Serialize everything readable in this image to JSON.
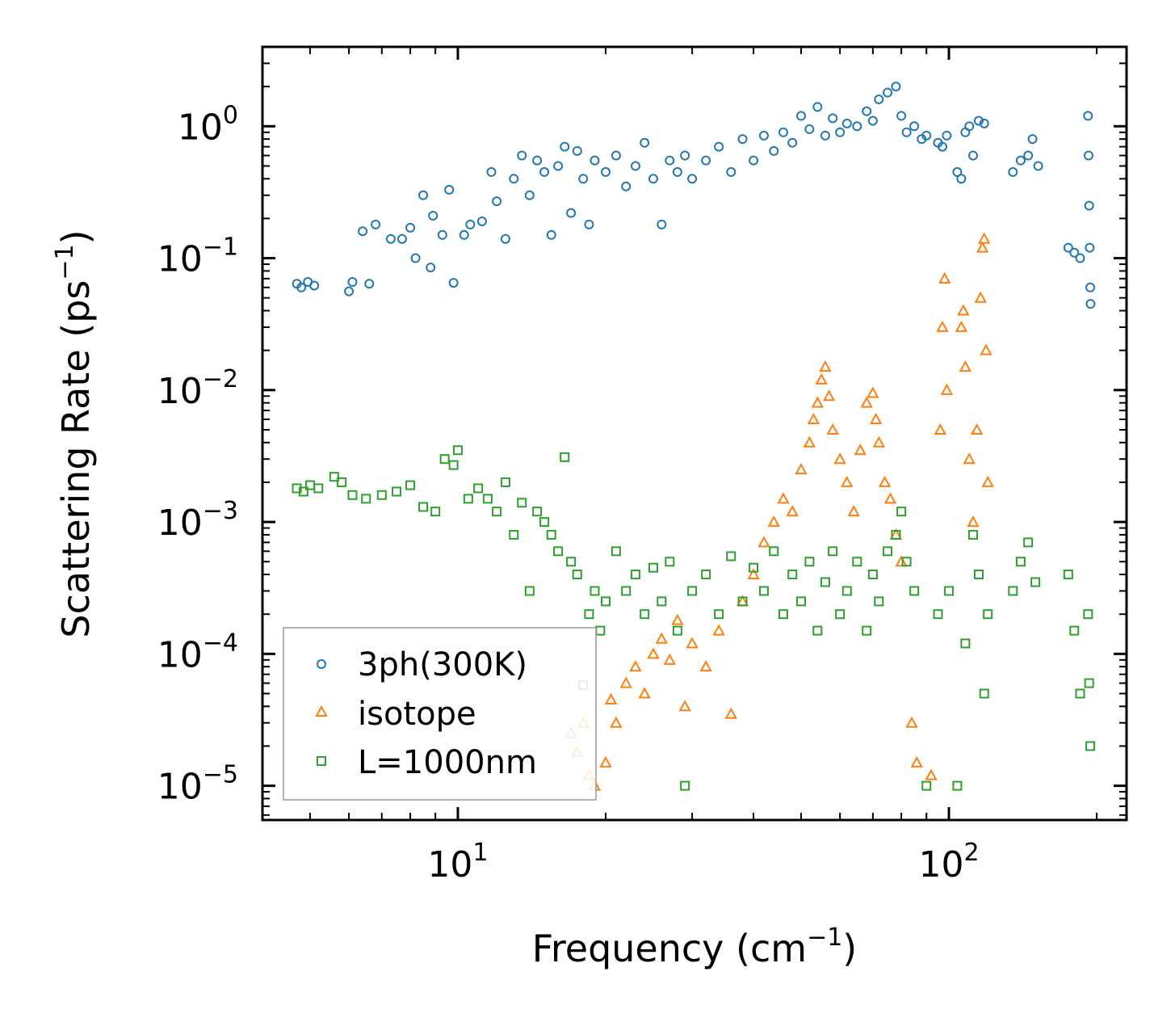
{
  "chart_data": {
    "type": "scatter",
    "title": "",
    "xlabel": "Frequency (cm",
    "xlabel_sup": "−1",
    "xlabel_tail": ")",
    "ylabel": "Scattering Rate (ps",
    "ylabel_sup": "−1",
    "ylabel_tail": ")",
    "xscale": "log",
    "yscale": "log",
    "xlim": [
      4.0,
      230.0
    ],
    "ylim": [
      5.5e-06,
      4.0
    ],
    "grid": false,
    "legend_position": "lower-left",
    "x_ticks": [
      {
        "value": 10,
        "base": "10",
        "exp": "1"
      },
      {
        "value": 100,
        "base": "10",
        "exp": "2"
      }
    ],
    "y_ticks": [
      {
        "value": 1,
        "base": "10",
        "exp": "0"
      },
      {
        "value": 0.1,
        "base": "10",
        "exp": "−1"
      },
      {
        "value": 0.01,
        "base": "10",
        "exp": "−2"
      },
      {
        "value": 0.001,
        "base": "10",
        "exp": "−3"
      },
      {
        "value": 0.0001,
        "base": "10",
        "exp": "−4"
      },
      {
        "value": 1e-05,
        "base": "10",
        "exp": "−5"
      }
    ],
    "series": [
      {
        "name": "3ph(300K)",
        "marker": "circle",
        "color": "#1f77b4",
        "points": [
          [
            4.7,
            0.064
          ],
          [
            4.8,
            0.06
          ],
          [
            4.95,
            0.066
          ],
          [
            5.1,
            0.062
          ],
          [
            6.0,
            0.056
          ],
          [
            6.1,
            0.066
          ],
          [
            6.6,
            0.064
          ],
          [
            6.4,
            0.16
          ],
          [
            6.8,
            0.18
          ],
          [
            7.3,
            0.14
          ],
          [
            7.7,
            0.14
          ],
          [
            8.0,
            0.17
          ],
          [
            8.2,
            0.1
          ],
          [
            8.5,
            0.3
          ],
          [
            8.8,
            0.085
          ],
          [
            8.9,
            0.21
          ],
          [
            9.3,
            0.15
          ],
          [
            9.6,
            0.33
          ],
          [
            9.8,
            0.065
          ],
          [
            10.3,
            0.15
          ],
          [
            10.6,
            0.18
          ],
          [
            11.2,
            0.19
          ],
          [
            11.7,
            0.45
          ],
          [
            12.0,
            0.27
          ],
          [
            12.5,
            0.14
          ],
          [
            13.0,
            0.4
          ],
          [
            13.5,
            0.6
          ],
          [
            14.0,
            0.3
          ],
          [
            14.5,
            0.55
          ],
          [
            15.0,
            0.45
          ],
          [
            15.5,
            0.15
          ],
          [
            16.0,
            0.5
          ],
          [
            16.5,
            0.7
          ],
          [
            17.0,
            0.22
          ],
          [
            17.5,
            0.65
          ],
          [
            18.0,
            0.4
          ],
          [
            18.5,
            0.18
          ],
          [
            19.0,
            0.55
          ],
          [
            20.0,
            0.45
          ],
          [
            21.0,
            0.6
          ],
          [
            22.0,
            0.35
          ],
          [
            23.0,
            0.5
          ],
          [
            24.0,
            0.75
          ],
          [
            25.0,
            0.4
          ],
          [
            26.0,
            0.18
          ],
          [
            27.0,
            0.55
          ],
          [
            28.0,
            0.45
          ],
          [
            29.0,
            0.6
          ],
          [
            30.0,
            0.4
          ],
          [
            32.0,
            0.55
          ],
          [
            34.0,
            0.7
          ],
          [
            36.0,
            0.45
          ],
          [
            38.0,
            0.8
          ],
          [
            40.0,
            0.55
          ],
          [
            42.0,
            0.85
          ],
          [
            44.0,
            0.65
          ],
          [
            46.0,
            0.9
          ],
          [
            48.0,
            0.75
          ],
          [
            50.0,
            1.2
          ],
          [
            52.0,
            0.95
          ],
          [
            54.0,
            1.4
          ],
          [
            56.0,
            0.85
          ],
          [
            58.0,
            1.15
          ],
          [
            60.0,
            0.9
          ],
          [
            62.0,
            1.05
          ],
          [
            65.0,
            1.0
          ],
          [
            68.0,
            1.3
          ],
          [
            70.0,
            1.1
          ],
          [
            72.0,
            1.6
          ],
          [
            75.0,
            1.8
          ],
          [
            78.0,
            2.0
          ],
          [
            80.0,
            1.2
          ],
          [
            82.0,
            0.9
          ],
          [
            85.0,
            1.0
          ],
          [
            88.0,
            0.8
          ],
          [
            90.0,
            0.85
          ],
          [
            95.0,
            0.75
          ],
          [
            97.0,
            0.7
          ],
          [
            99.0,
            0.85
          ],
          [
            104.0,
            0.45
          ],
          [
            106.0,
            0.4
          ],
          [
            108.0,
            0.9
          ],
          [
            110.0,
            1.0
          ],
          [
            112.0,
            0.6
          ],
          [
            115.0,
            1.1
          ],
          [
            118.0,
            1.05
          ],
          [
            135.0,
            0.45
          ],
          [
            140.0,
            0.55
          ],
          [
            145.0,
            0.6
          ],
          [
            148.0,
            0.8
          ],
          [
            152.0,
            0.5
          ],
          [
            175.0,
            0.12
          ],
          [
            180.0,
            0.11
          ],
          [
            185.0,
            0.1
          ],
          [
            192.0,
            1.2
          ],
          [
            192.5,
            0.6
          ],
          [
            193.0,
            0.25
          ],
          [
            193.5,
            0.12
          ],
          [
            194.0,
            0.06
          ],
          [
            194.3,
            0.045
          ]
        ]
      },
      {
        "name": "isotope",
        "marker": "triangle",
        "color": "#ff7f0e",
        "points": [
          [
            17.0,
            2.5e-05
          ],
          [
            17.5,
            1.8e-05
          ],
          [
            18.0,
            3e-05
          ],
          [
            18.5,
            1.2e-05
          ],
          [
            19.0,
            1e-05
          ],
          [
            20.0,
            1.5e-05
          ],
          [
            20.5,
            4.5e-05
          ],
          [
            21.0,
            3e-05
          ],
          [
            22.0,
            6e-05
          ],
          [
            23.0,
            8e-05
          ],
          [
            24.0,
            5e-05
          ],
          [
            25.0,
            0.0001
          ],
          [
            26.0,
            0.00013
          ],
          [
            27.0,
            9e-05
          ],
          [
            28.0,
            0.00018
          ],
          [
            29.0,
            4e-05
          ],
          [
            30.0,
            0.00012
          ],
          [
            32.0,
            8e-05
          ],
          [
            34.0,
            0.00015
          ],
          [
            36.0,
            3.5e-05
          ],
          [
            38.0,
            0.00025
          ],
          [
            40.0,
            0.0004
          ],
          [
            42.0,
            0.0007
          ],
          [
            44.0,
            0.001
          ],
          [
            46.0,
            0.0015
          ],
          [
            48.0,
            0.0012
          ],
          [
            50.0,
            0.0025
          ],
          [
            52.0,
            0.004
          ],
          [
            53.0,
            0.006
          ],
          [
            54.0,
            0.008
          ],
          [
            55.0,
            0.012
          ],
          [
            56.0,
            0.015
          ],
          [
            57.0,
            0.009
          ],
          [
            58.0,
            0.005
          ],
          [
            60.0,
            0.003
          ],
          [
            62.0,
            0.002
          ],
          [
            64.0,
            0.0012
          ],
          [
            66.0,
            0.0035
          ],
          [
            68.0,
            0.008
          ],
          [
            70.0,
            0.0095
          ],
          [
            71.0,
            0.006
          ],
          [
            72.0,
            0.004
          ],
          [
            74.0,
            0.002
          ],
          [
            76.0,
            0.0015
          ],
          [
            78.0,
            0.0008
          ],
          [
            80.0,
            0.0005
          ],
          [
            84.0,
            3e-05
          ],
          [
            86.0,
            1.5e-05
          ],
          [
            92.0,
            1.2e-05
          ],
          [
            96.0,
            0.005
          ],
          [
            97.0,
            0.03
          ],
          [
            98.0,
            0.07
          ],
          [
            99.0,
            0.01
          ],
          [
            106.0,
            0.03
          ],
          [
            107.0,
            0.04
          ],
          [
            108.0,
            0.015
          ],
          [
            110.0,
            0.003
          ],
          [
            112.0,
            0.001
          ],
          [
            114.0,
            0.005
          ],
          [
            116.0,
            0.05
          ],
          [
            117.0,
            0.12
          ],
          [
            118.0,
            0.14
          ],
          [
            119.0,
            0.02
          ],
          [
            120.0,
            0.002
          ]
        ]
      },
      {
        "name": "L=1000nm",
        "marker": "square",
        "color": "#2ca02c",
        "points": [
          [
            4.7,
            0.0018
          ],
          [
            4.85,
            0.0017
          ],
          [
            5.0,
            0.0019
          ],
          [
            5.2,
            0.0018
          ],
          [
            5.6,
            0.0022
          ],
          [
            5.8,
            0.002
          ],
          [
            6.1,
            0.0016
          ],
          [
            6.5,
            0.0015
          ],
          [
            7.0,
            0.0016
          ],
          [
            7.5,
            0.0017
          ],
          [
            8.0,
            0.0019
          ],
          [
            8.5,
            0.0013
          ],
          [
            9.0,
            0.0012
          ],
          [
            9.4,
            0.003
          ],
          [
            9.8,
            0.0027
          ],
          [
            10.0,
            0.0035
          ],
          [
            10.5,
            0.0015
          ],
          [
            11.0,
            0.0018
          ],
          [
            11.5,
            0.0015
          ],
          [
            12.0,
            0.0012
          ],
          [
            12.5,
            0.002
          ],
          [
            13.0,
            0.0008
          ],
          [
            13.5,
            0.0014
          ],
          [
            14.0,
            0.0003
          ],
          [
            14.5,
            0.0012
          ],
          [
            15.0,
            0.001
          ],
          [
            15.5,
            0.0008
          ],
          [
            16.0,
            0.0006
          ],
          [
            16.5,
            0.0031
          ],
          [
            17.0,
            0.0005
          ],
          [
            17.5,
            0.0004
          ],
          [
            18.0,
            5.8e-05
          ],
          [
            18.5,
            0.0002
          ],
          [
            19.0,
            0.0003
          ],
          [
            19.5,
            0.00015
          ],
          [
            20.0,
            0.00025
          ],
          [
            21.0,
            0.0006
          ],
          [
            22.0,
            0.0003
          ],
          [
            23.0,
            0.0004
          ],
          [
            24.0,
            0.0002
          ],
          [
            25.0,
            0.00045
          ],
          [
            26.0,
            0.00025
          ],
          [
            27.0,
            0.0005
          ],
          [
            28.0,
            0.00015
          ],
          [
            29.0,
            1e-05
          ],
          [
            30.0,
            0.0003
          ],
          [
            32.0,
            0.0004
          ],
          [
            34.0,
            0.0002
          ],
          [
            36.0,
            0.00055
          ],
          [
            38.0,
            0.00025
          ],
          [
            40.0,
            0.00045
          ],
          [
            42.0,
            0.0003
          ],
          [
            44.0,
            0.0006
          ],
          [
            46.0,
            0.0002
          ],
          [
            48.0,
            0.0004
          ],
          [
            50.0,
            0.00025
          ],
          [
            52.0,
            0.0005
          ],
          [
            54.0,
            0.00015
          ],
          [
            56.0,
            0.00035
          ],
          [
            58.0,
            0.0006
          ],
          [
            60.0,
            0.0002
          ],
          [
            62.0,
            0.0003
          ],
          [
            65.0,
            0.0005
          ],
          [
            68.0,
            0.00015
          ],
          [
            70.0,
            0.0004
          ],
          [
            72.0,
            0.00025
          ],
          [
            75.0,
            0.0006
          ],
          [
            78.0,
            0.0008
          ],
          [
            80.0,
            0.0012
          ],
          [
            82.0,
            0.0005
          ],
          [
            85.0,
            0.0003
          ],
          [
            90.0,
            1e-05
          ],
          [
            95.0,
            0.0002
          ],
          [
            100.0,
            0.0003
          ],
          [
            104.0,
            1e-05
          ],
          [
            108.0,
            0.00012
          ],
          [
            112.0,
            0.0008
          ],
          [
            115.0,
            0.0004
          ],
          [
            118.0,
            5e-05
          ],
          [
            120.0,
            0.0002
          ],
          [
            135.0,
            0.0003
          ],
          [
            140.0,
            0.0005
          ],
          [
            145.0,
            0.0007
          ],
          [
            150.0,
            0.00035
          ],
          [
            175.0,
            0.0004
          ],
          [
            180.0,
            0.00015
          ],
          [
            185.0,
            5e-05
          ],
          [
            192.0,
            0.0002
          ],
          [
            193.0,
            6e-05
          ],
          [
            194.0,
            2e-05
          ]
        ]
      }
    ]
  }
}
